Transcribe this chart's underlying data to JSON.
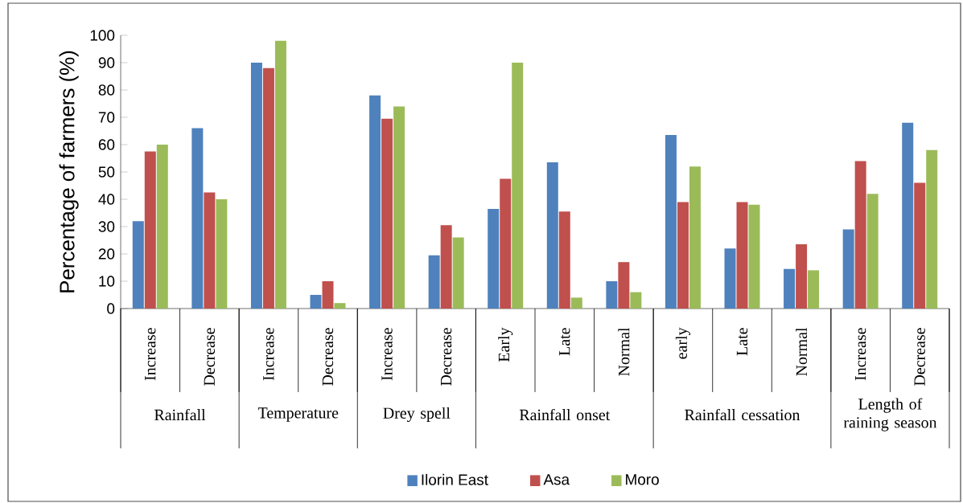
{
  "chart_data": {
    "type": "bar",
    "ylabel": "Percentage of farmers (%)",
    "categories": [
      "Increase",
      "Decrease",
      "Increase",
      "Decrease",
      "Increase",
      "Decrease",
      "Early",
      "Late",
      "Normal",
      "early",
      "Late",
      "Normal",
      "Increase",
      "Decrease"
    ],
    "series": [
      {
        "name": "Ilorin East",
        "color": "#4f81bd",
        "values": [
          32,
          66,
          90,
          5,
          78,
          19.5,
          36.5,
          53.5,
          10,
          63.5,
          22,
          14.5,
          29,
          68
        ]
      },
      {
        "name": "Asa",
        "color": "#c0504d",
        "values": [
          57.5,
          42.5,
          88,
          10,
          69.5,
          30.5,
          47.5,
          35.5,
          17,
          39,
          39,
          23.5,
          54,
          46
        ]
      },
      {
        "name": "Moro",
        "color": "#9bbb59",
        "values": [
          60,
          40,
          98,
          2,
          74,
          26,
          90,
          4,
          6,
          52,
          38,
          14,
          42,
          58
        ]
      }
    ],
    "annotations": [
      "Rainfall",
      "Temperature",
      "Drey spell",
      "Rainfall onset",
      "Rainfall cessation",
      "Length of raining season"
    ],
    "ylim": [
      0,
      100
    ],
    "yticks": [
      0,
      10,
      20,
      30,
      40,
      50,
      60,
      70,
      80,
      90,
      100
    ],
    "grid": false,
    "legend": "bottom"
  }
}
